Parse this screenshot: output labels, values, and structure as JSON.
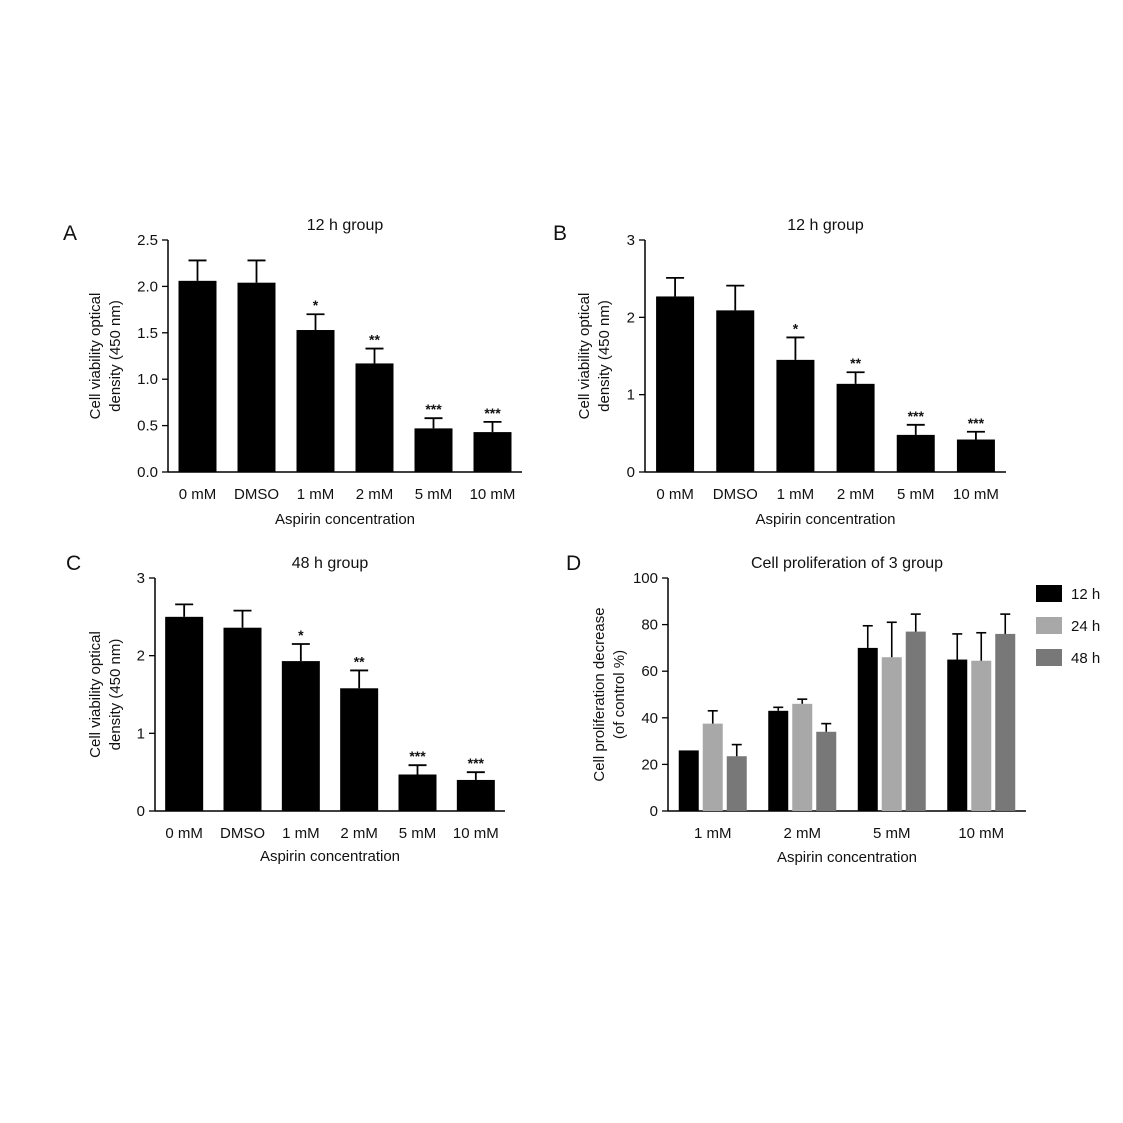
{
  "chart_data": [
    {
      "panel": "A",
      "type": "bar",
      "title": "12 h group",
      "xlabel": "Aspirin concentration",
      "ylabel_lines": [
        "Cell viability optical",
        "density (450 nm)"
      ],
      "categories": [
        "0 mM",
        "DMSO",
        "1 mM",
        "2 mM",
        "5 mM",
        "10 mM"
      ],
      "values": [
        2.06,
        2.04,
        1.53,
        1.17,
        0.47,
        0.43
      ],
      "errors": [
        0.22,
        0.24,
        0.17,
        0.16,
        0.11,
        0.11
      ],
      "significance": [
        "",
        "",
        "*",
        "**",
        "***",
        "***"
      ],
      "ylim": [
        0,
        2.5
      ],
      "yticks": [
        "0.0",
        "0.5",
        "1.0",
        "1.5",
        "2.0",
        "2.5"
      ],
      "bar_color": "#000000"
    },
    {
      "panel": "B",
      "type": "bar",
      "title": "12 h group",
      "xlabel": "Aspirin concentration",
      "ylabel_lines": [
        "Cell viability optical",
        "density (450 nm)"
      ],
      "categories": [
        "0 mM",
        "DMSO",
        "1 mM",
        "2 mM",
        "5 mM",
        "10 mM"
      ],
      "values": [
        2.27,
        2.09,
        1.45,
        1.14,
        0.48,
        0.42
      ],
      "errors": [
        0.24,
        0.32,
        0.29,
        0.15,
        0.13,
        0.1
      ],
      "significance": [
        "",
        "",
        "*",
        "**",
        "***",
        "***"
      ],
      "ylim": [
        0,
        3
      ],
      "yticks": [
        "0",
        "1",
        "2",
        "3"
      ],
      "bar_color": "#000000"
    },
    {
      "panel": "C",
      "type": "bar",
      "title": "48 h group",
      "xlabel": "Aspirin concentration",
      "ylabel_lines": [
        "Cell viability optical",
        "density (450 nm)"
      ],
      "categories": [
        "0 mM",
        "DMSO",
        "1 mM",
        "2 mM",
        "5 mM",
        "10 mM"
      ],
      "values": [
        2.5,
        2.36,
        1.93,
        1.58,
        0.47,
        0.4
      ],
      "errors": [
        0.16,
        0.22,
        0.22,
        0.23,
        0.12,
        0.1
      ],
      "significance": [
        "",
        "",
        "*",
        "**",
        "***",
        "***"
      ],
      "ylim": [
        0,
        3
      ],
      "yticks": [
        "0",
        "1",
        "2",
        "3"
      ],
      "bar_color": "#000000"
    },
    {
      "panel": "D",
      "type": "bar",
      "title": "Cell proliferation of 3 group",
      "xlabel": "Aspirin concentration",
      "ylabel_lines": [
        "Cell proliferation decrease",
        "(of control %)"
      ],
      "categories": [
        "1 mM",
        "2 mM",
        "5 mM",
        "10 mM"
      ],
      "series": [
        {
          "name": "12 h",
          "color": "#000000",
          "values": [
            26,
            43,
            70,
            65
          ],
          "errors": [
            0,
            1.5,
            9.5,
            11
          ]
        },
        {
          "name": "24 h",
          "color": "#a8a8a8",
          "values": [
            37.5,
            46,
            66,
            64.5
          ],
          "errors": [
            5.5,
            2,
            15,
            12
          ]
        },
        {
          "name": "48 h",
          "color": "#787878",
          "values": [
            23.5,
            34,
            77,
            76
          ],
          "errors": [
            5,
            3.5,
            7.5,
            8.5
          ]
        }
      ],
      "ylim": [
        0,
        100
      ],
      "yticks": [
        "0",
        "20",
        "40",
        "60",
        "80",
        "100"
      ],
      "legend_position": "right"
    }
  ]
}
